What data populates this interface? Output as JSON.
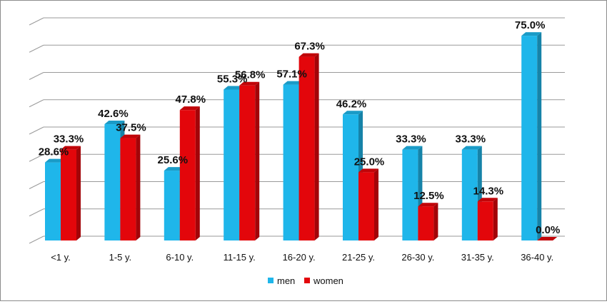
{
  "chart_data": {
    "type": "bar",
    "categories": [
      "<1 y.",
      "1-5 y.",
      "6-10 y.",
      "11-15 y.",
      "16-20 y.",
      "21-25 y.",
      "26-30 y.",
      "31-35 y.",
      "36-40 y."
    ],
    "series": [
      {
        "name": "men",
        "color": "#1fb6ea",
        "values": [
          28.6,
          42.6,
          25.6,
          55.3,
          57.1,
          46.2,
          33.3,
          33.3,
          75.0
        ],
        "labels": [
          "28.6%",
          "42.6%",
          "25.6%",
          "55.3%",
          "57.1%",
          "46.2%",
          "33.3%",
          "33.3%",
          "75.0%"
        ]
      },
      {
        "name": "women",
        "color": "#e3060b",
        "values": [
          33.3,
          37.5,
          47.8,
          56.8,
          67.3,
          25.0,
          12.5,
          14.3,
          0.0
        ],
        "labels": [
          "33.3%",
          "37.5%",
          "47.8%",
          "56.8%",
          "67.3%",
          "25.0%",
          "12.5%",
          "14.3%",
          "0.0%"
        ]
      }
    ],
    "ylim": [
      0,
      80
    ],
    "grid": true,
    "legend_position": "bottom",
    "style": "3d-columns"
  }
}
